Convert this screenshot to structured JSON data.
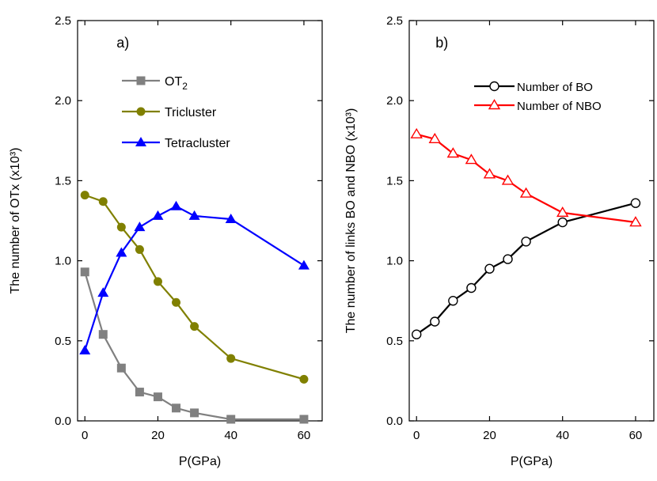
{
  "chart_data": [
    {
      "id": "a",
      "type": "line",
      "panel_label": "a)",
      "xlabel": "P(GPa)",
      "ylabel": "The number of OTx (x10³)",
      "xlim": [
        -2,
        65
      ],
      "ylim": [
        0.0,
        2.5
      ],
      "x_ticks": [
        0,
        20,
        40,
        60
      ],
      "y_ticks": [
        0.0,
        0.5,
        1.0,
        1.5,
        2.0,
        2.5
      ],
      "y_tick_labels": [
        "0.0",
        "0.5",
        "1.0",
        "1.5",
        "2.0",
        "2.5"
      ],
      "legend_position": "top-left",
      "x": [
        0,
        5,
        10,
        15,
        20,
        25,
        30,
        40,
        60
      ],
      "series": [
        {
          "name": "OT2",
          "name_main": "OT",
          "name_sub": "2",
          "color": "#808080",
          "marker": "square-filled",
          "values": [
            0.93,
            0.54,
            0.33,
            0.18,
            0.15,
            0.08,
            0.05,
            0.01,
            0.01
          ]
        },
        {
          "name": "Tricluster",
          "color": "#808000",
          "marker": "circle-filled",
          "values": [
            1.41,
            1.37,
            1.21,
            1.07,
            0.87,
            0.74,
            0.59,
            0.39,
            0.26
          ]
        },
        {
          "name": "Tetracluster",
          "color": "#0000ff",
          "marker": "triangle-filled",
          "values": [
            0.44,
            0.8,
            1.05,
            1.21,
            1.28,
            1.34,
            1.28,
            1.26,
            0.97
          ]
        }
      ]
    },
    {
      "id": "b",
      "type": "line",
      "panel_label": "b)",
      "xlabel": "P(GPa)",
      "ylabel": "The number of links BO and NBO (x10³)",
      "xlim": [
        -2,
        65
      ],
      "ylim": [
        0.0,
        2.5
      ],
      "x_ticks": [
        0,
        20,
        40,
        60
      ],
      "y_ticks": [
        0.0,
        0.5,
        1.0,
        1.5,
        2.0,
        2.5
      ],
      "y_tick_labels": [
        "0.0",
        "0.5",
        "1.0",
        "1.5",
        "2.0",
        "2.5"
      ],
      "legend_position": "top-right",
      "x": [
        0,
        5,
        10,
        15,
        20,
        25,
        30,
        40,
        60
      ],
      "series": [
        {
          "name": "Number of  BO",
          "color": "#000000",
          "marker": "circle-open",
          "values": [
            0.54,
            0.62,
            0.75,
            0.83,
            0.95,
            1.01,
            1.12,
            1.24,
            1.36
          ]
        },
        {
          "name": "Number of NBO",
          "color": "#ff0000",
          "marker": "triangle-open",
          "values": [
            1.79,
            1.76,
            1.67,
            1.63,
            1.54,
            1.5,
            1.42,
            1.3,
            1.24
          ]
        }
      ]
    }
  ]
}
